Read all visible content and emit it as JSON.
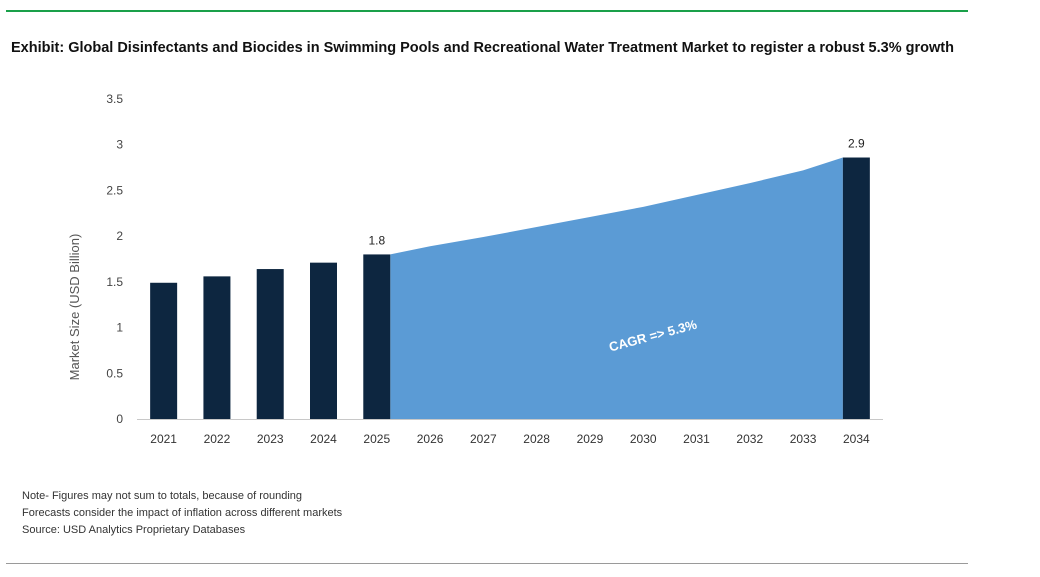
{
  "header": {
    "title": "Exhibit: Global Disinfectants and Biocides in Swimming Pools and Recreational Water Treatment Market to register a robust 5.3% growth"
  },
  "notes": [
    "Note- Figures may not sum to totals, because of rounding",
    "Forecasts consider the impact of inflation across different markets",
    "Source: USD Analytics Proprietary Databases"
  ],
  "colors": {
    "bar": "#0d2640",
    "area": "#5b9bd5",
    "rule_top": "#1aa04a",
    "rule_bottom": "#9a9a9a"
  },
  "chart_data": {
    "type": "bar",
    "title": "Exhibit: Global Disinfectants and Biocides in Swimming Pools and Recreational Water Treatment Market to register a robust 5.3% growth",
    "xlabel": "",
    "ylabel": "Market Size (USD Billion)",
    "ylim": [
      0,
      3.5
    ],
    "yticks": [
      "0",
      "0.5",
      "1",
      "1.5",
      "2",
      "2.5",
      "3",
      "3.5"
    ],
    "grid": false,
    "categories": [
      "2021",
      "2022",
      "2023",
      "2024",
      "2025",
      "2026",
      "2027",
      "2028",
      "2029",
      "2030",
      "2031",
      "2032",
      "2033",
      "2034"
    ],
    "bars": [
      {
        "x": "2021",
        "value": 1.49
      },
      {
        "x": "2022",
        "value": 1.56
      },
      {
        "x": "2023",
        "value": 1.64
      },
      {
        "x": "2024",
        "value": 1.71
      },
      {
        "x": "2025",
        "value": 1.8,
        "label": "1.8"
      },
      {
        "x": "2034",
        "value": 2.86,
        "label": "2.9"
      }
    ],
    "area": {
      "x": [
        "2025",
        "2026",
        "2027",
        "2028",
        "2029",
        "2030",
        "2031",
        "2032",
        "2033",
        "2034"
      ],
      "values": [
        1.8,
        1.89,
        1.99,
        2.1,
        2.21,
        2.32,
        2.45,
        2.58,
        2.72,
        2.86
      ]
    },
    "annotation": "CAGR => 5.3%"
  }
}
